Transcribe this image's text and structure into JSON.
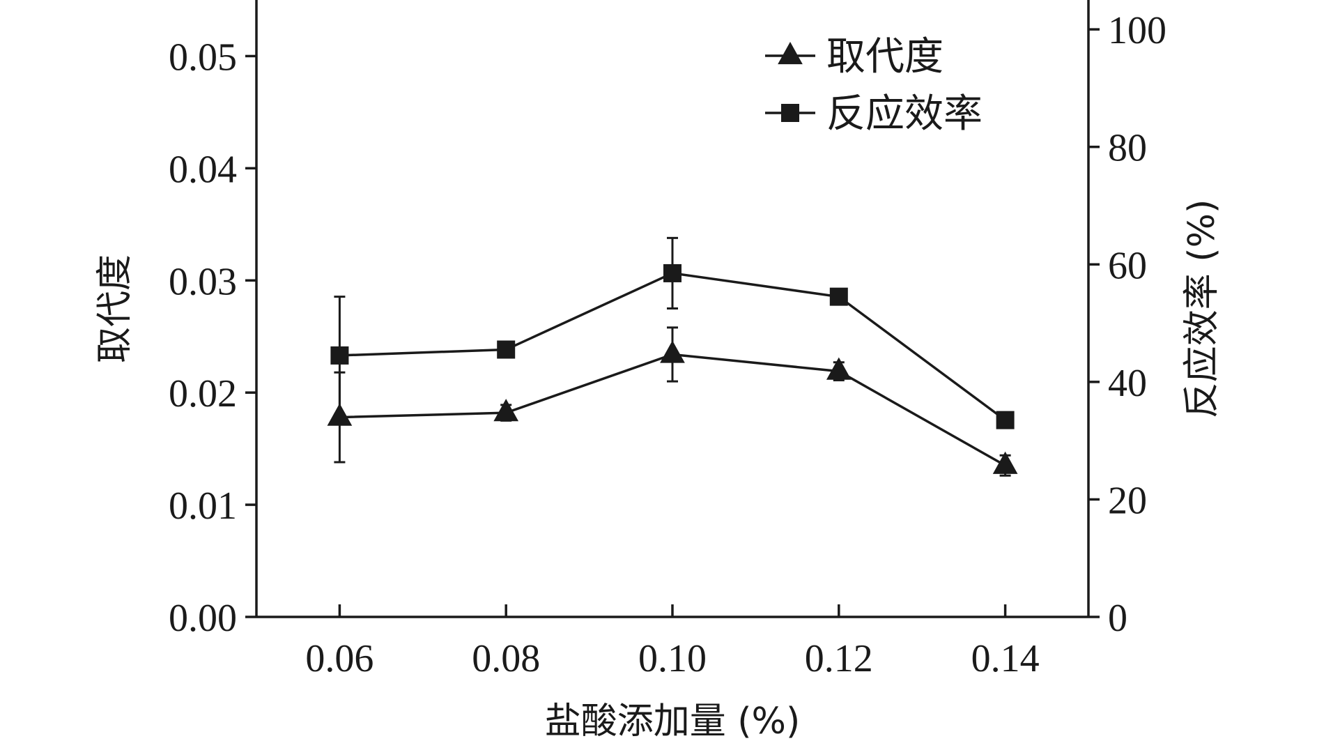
{
  "chart_data": {
    "type": "line",
    "xlabel": "盐酸添加量 (%)",
    "ylabel_left": "取代度",
    "ylabel_right": "反应效率 (%)",
    "categories": [
      "0.06",
      "0.08",
      "0.10",
      "0.12",
      "0.14"
    ],
    "x": [
      0.06,
      0.08,
      0.1,
      0.12,
      0.14
    ],
    "xlim": [
      0.05,
      0.15
    ],
    "ylim_left": [
      0,
      0.055
    ],
    "ylim_right": [
      0,
      105
    ],
    "yticks_left": [
      "0.00",
      "0.01",
      "0.02",
      "0.03",
      "0.04",
      "0.05"
    ],
    "yticks_right": [
      "0",
      "20",
      "40",
      "60",
      "80",
      "100"
    ],
    "legend_position": "top-right",
    "grid": false,
    "series": [
      {
        "name": "取代度",
        "axis": "left",
        "marker": "triangle",
        "values": [
          0.0178,
          0.0182,
          0.0234,
          0.0219,
          0.0135
        ],
        "errors": [
          0.004,
          0.0007,
          0.0024,
          0.0008,
          0.0009
        ]
      },
      {
        "name": "反应效率",
        "axis": "right",
        "marker": "square",
        "values": [
          44.5,
          45.5,
          58.5,
          54.5,
          33.5
        ],
        "errors": [
          10.0,
          0.8,
          6.0,
          1.0,
          0.6
        ]
      }
    ],
    "colors": {
      "ink": "#1a1a1a"
    }
  }
}
